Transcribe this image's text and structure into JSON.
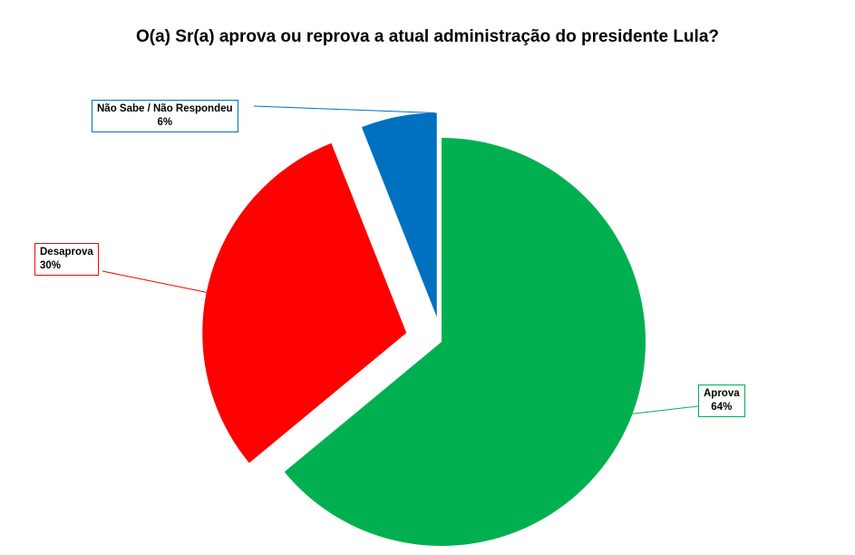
{
  "chart_data": {
    "type": "pie",
    "title": "O(a) Sr(a) aprova ou reprova a atual administração do presidente Lula?",
    "slices": [
      {
        "label": "Aprova",
        "value": 64,
        "value_label": "64%",
        "color": "#00b050"
      },
      {
        "label": "Desaprova",
        "value": 30,
        "value_label": "30%",
        "color": "#ff0000"
      },
      {
        "label": "Não Sabe / Não Respondeu",
        "value": 6,
        "value_label": "6%",
        "color": "#0070c0"
      }
    ],
    "exploded": true,
    "legend": "none"
  }
}
